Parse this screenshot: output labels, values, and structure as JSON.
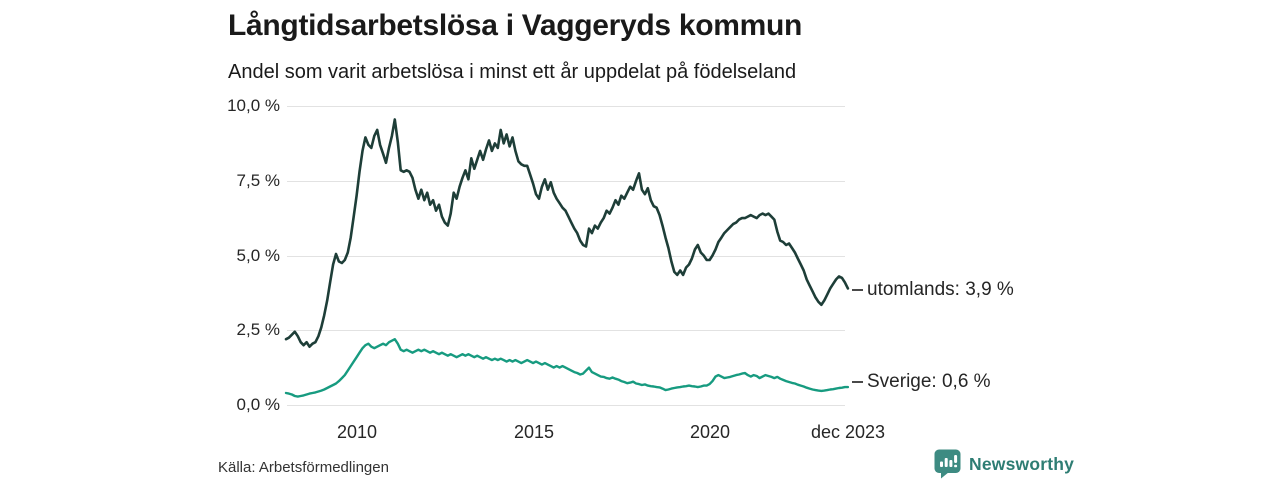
{
  "header": {
    "title": "Långtidsarbetslösa i Vaggeryds kommun",
    "subtitle": "Andel som varit arbetslösa i minst ett år uppdelat på födelseland"
  },
  "source": {
    "label": "Källa: Arbetsförmedlingen"
  },
  "branding": {
    "name": "Newsworthy",
    "logo_icon": "bar-chart-speech-bubble",
    "logo_color": "#3d8b82",
    "text_color": "#2e7d73"
  },
  "colors": {
    "series_utomlands": "#1e3e38",
    "series_sverige": "#179b80",
    "gridline": "#e2e2e2",
    "text": "#262626"
  },
  "chart_data": {
    "type": "line",
    "title": "Långtidsarbetslösa i Vaggeryds kommun",
    "subtitle": "Andel som varit arbetslösa i minst ett år uppdelat på födelseland",
    "unit": "%",
    "grid": "horizontal",
    "legend_position": "line-end-labels-right",
    "x_start_year": 2008,
    "points_per_year": 12,
    "ylim": [
      0,
      10
    ],
    "yticks": [
      {
        "value": 10.0,
        "label": "10,0 %"
      },
      {
        "value": 7.5,
        "label": "7,5 %"
      },
      {
        "value": 5.0,
        "label": "5,0 %"
      },
      {
        "value": 2.5,
        "label": "2,5 %"
      },
      {
        "value": 0.0,
        "label": "0,0 %"
      }
    ],
    "xticks": [
      {
        "value": 2010,
        "label": "2010"
      },
      {
        "value": 2015,
        "label": "2015"
      },
      {
        "value": 2020,
        "label": "2020"
      },
      {
        "value": 2023.92,
        "label": "dec 2023"
      }
    ],
    "end_label_dash": "–",
    "series": [
      {
        "name": "utomlands",
        "color": "#1e3e38",
        "last_value": 3.9,
        "end_label": "utomlands: 3,9 %",
        "values": [
          2.2,
          2.25,
          2.35,
          2.45,
          2.3,
          2.1,
          2.0,
          2.1,
          1.95,
          2.05,
          2.1,
          2.3,
          2.6,
          3.0,
          3.5,
          4.1,
          4.7,
          5.05,
          4.8,
          4.75,
          4.85,
          5.1,
          5.6,
          6.3,
          7.0,
          7.8,
          8.5,
          8.95,
          8.7,
          8.6,
          9.0,
          9.2,
          8.7,
          8.4,
          8.1,
          8.6,
          9.0,
          9.55,
          8.8,
          7.85,
          7.8,
          7.85,
          7.8,
          7.6,
          7.2,
          6.9,
          7.2,
          6.85,
          7.1,
          6.7,
          6.85,
          6.5,
          6.7,
          6.3,
          6.1,
          6.0,
          6.4,
          7.1,
          6.9,
          7.3,
          7.6,
          7.85,
          7.55,
          8.25,
          7.9,
          8.2,
          8.5,
          8.2,
          8.55,
          8.85,
          8.5,
          8.75,
          8.6,
          9.2,
          8.75,
          9.05,
          8.65,
          8.95,
          8.5,
          8.15,
          8.05,
          8.0,
          8.0,
          7.7,
          7.4,
          7.05,
          6.9,
          7.3,
          7.55,
          7.2,
          7.45,
          7.1,
          6.9,
          6.75,
          6.6,
          6.5,
          6.3,
          6.1,
          5.9,
          5.75,
          5.5,
          5.35,
          5.3,
          5.9,
          5.75,
          6.0,
          5.9,
          6.1,
          6.25,
          6.5,
          6.4,
          6.6,
          6.85,
          6.7,
          7.0,
          6.9,
          7.1,
          7.3,
          7.2,
          7.5,
          7.75,
          7.2,
          7.05,
          7.25,
          6.85,
          6.65,
          6.6,
          6.35,
          6.0,
          5.6,
          5.25,
          4.8,
          4.45,
          4.35,
          4.5,
          4.35,
          4.6,
          4.7,
          4.9,
          5.2,
          5.35,
          5.1,
          5.0,
          4.85,
          4.85,
          5.0,
          5.2,
          5.45,
          5.6,
          5.75,
          5.85,
          5.95,
          6.05,
          6.1,
          6.2,
          6.25,
          6.25,
          6.3,
          6.35,
          6.3,
          6.25,
          6.35,
          6.4,
          6.35,
          6.4,
          6.3,
          6.2,
          5.8,
          5.5,
          5.45,
          5.35,
          5.4,
          5.25,
          5.1,
          4.9,
          4.7,
          4.5,
          4.2,
          4.0,
          3.8,
          3.6,
          3.45,
          3.35,
          3.5,
          3.7,
          3.9,
          4.05,
          4.2,
          4.3,
          4.25,
          4.1,
          3.9
        ]
      },
      {
        "name": "Sverige",
        "color": "#179b80",
        "last_value": 0.6,
        "end_label": "Sverige: 0,6 %",
        "values": [
          0.4,
          0.38,
          0.35,
          0.3,
          0.28,
          0.3,
          0.32,
          0.35,
          0.38,
          0.4,
          0.42,
          0.45,
          0.48,
          0.52,
          0.57,
          0.62,
          0.67,
          0.72,
          0.8,
          0.9,
          1.0,
          1.15,
          1.3,
          1.45,
          1.6,
          1.75,
          1.9,
          2.0,
          2.05,
          1.95,
          1.9,
          1.95,
          2.0,
          2.05,
          2.0,
          2.1,
          2.15,
          2.2,
          2.05,
          1.85,
          1.8,
          1.85,
          1.8,
          1.75,
          1.8,
          1.85,
          1.8,
          1.85,
          1.8,
          1.75,
          1.8,
          1.75,
          1.7,
          1.75,
          1.7,
          1.65,
          1.7,
          1.65,
          1.6,
          1.65,
          1.7,
          1.65,
          1.7,
          1.65,
          1.6,
          1.65,
          1.6,
          1.55,
          1.6,
          1.55,
          1.5,
          1.55,
          1.5,
          1.55,
          1.5,
          1.45,
          1.5,
          1.45,
          1.5,
          1.45,
          1.4,
          1.45,
          1.5,
          1.45,
          1.4,
          1.45,
          1.4,
          1.35,
          1.4,
          1.35,
          1.3,
          1.25,
          1.3,
          1.25,
          1.3,
          1.25,
          1.2,
          1.15,
          1.1,
          1.07,
          1.02,
          1.05,
          1.15,
          1.25,
          1.1,
          1.05,
          1.0,
          0.95,
          0.94,
          0.9,
          0.88,
          0.92,
          0.88,
          0.85,
          0.8,
          0.77,
          0.73,
          0.75,
          0.78,
          0.72,
          0.7,
          0.67,
          0.69,
          0.65,
          0.63,
          0.62,
          0.6,
          0.59,
          0.55,
          0.5,
          0.52,
          0.55,
          0.57,
          0.59,
          0.6,
          0.62,
          0.63,
          0.65,
          0.63,
          0.62,
          0.6,
          0.62,
          0.65,
          0.65,
          0.7,
          0.8,
          0.95,
          1.0,
          0.95,
          0.9,
          0.92,
          0.94,
          0.97,
          1.0,
          1.02,
          1.05,
          1.07,
          1.0,
          0.95,
          1.0,
          0.97,
          0.9,
          0.95,
          1.0,
          0.97,
          0.94,
          0.9,
          0.94,
          0.88,
          0.84,
          0.8,
          0.77,
          0.74,
          0.72,
          0.68,
          0.65,
          0.62,
          0.58,
          0.55,
          0.52,
          0.5,
          0.48,
          0.47,
          0.48,
          0.5,
          0.52,
          0.53,
          0.55,
          0.57,
          0.58,
          0.6,
          0.6
        ]
      }
    ]
  }
}
